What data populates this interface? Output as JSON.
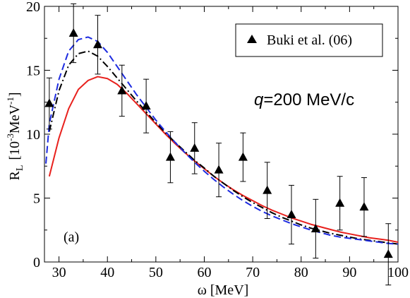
{
  "chart_data": {
    "type": "line",
    "title": "",
    "xlabel": "ω [MeV]",
    "ylabel": {
      "main": "R",
      "subscript": "L",
      "unit_prefix": "[10",
      "exponent1": "-3",
      "unit_middle": "MeV",
      "exponent2": "-1",
      "unit_suffix": "]"
    },
    "xlim": [
      27,
      100
    ],
    "ylim": [
      0,
      20
    ],
    "x_ticks": [
      30,
      40,
      50,
      60,
      70,
      80,
      90,
      100
    ],
    "y_ticks": [
      0,
      5,
      10,
      15,
      20
    ],
    "x_tick_labels": [
      "30",
      "40",
      "50",
      "60",
      "70",
      "80",
      "90",
      "100"
    ],
    "y_tick_labels": [
      "0",
      "5",
      "10",
      "15",
      "20"
    ],
    "grid": false,
    "legend_position": "top-right",
    "legend": {
      "marker": "triangle",
      "label": "Buki et al. (06)"
    },
    "annotation": {
      "var": "q",
      "text": "=200 MeV/c"
    },
    "panel_label": "(a)",
    "series": [
      {
        "style": "solid",
        "color": "#e8211d",
        "x": [
          28,
          30,
          32,
          34,
          36,
          38,
          40,
          42,
          44,
          46,
          48,
          50,
          52,
          54,
          56,
          58,
          60,
          62,
          64,
          66,
          68,
          70,
          72,
          74,
          76,
          78,
          80,
          82,
          84,
          86,
          88,
          90,
          92,
          94,
          96,
          98,
          100
        ],
        "y": [
          6.7,
          9.7,
          12.0,
          13.5,
          14.2,
          14.5,
          14.35,
          13.9,
          13.2,
          12.4,
          11.6,
          10.8,
          10.0,
          9.25,
          8.55,
          7.9,
          7.3,
          6.7,
          6.15,
          5.65,
          5.2,
          4.8,
          4.4,
          4.05,
          3.75,
          3.45,
          3.2,
          2.95,
          2.75,
          2.55,
          2.35,
          2.2,
          2.05,
          1.9,
          1.8,
          1.7,
          1.55
        ]
      },
      {
        "style": "dashdot",
        "color": "#000000",
        "x": [
          28,
          30,
          32,
          34,
          36,
          38,
          40,
          42,
          44,
          46,
          48,
          50,
          52,
          54,
          56,
          58,
          60,
          62,
          64,
          66,
          68,
          70,
          72,
          74,
          76,
          78,
          80,
          82,
          84,
          86,
          88,
          90,
          92,
          94,
          96,
          98,
          100
        ],
        "y": [
          10.2,
          13.4,
          15.4,
          16.3,
          16.5,
          16.1,
          15.3,
          14.4,
          13.5,
          12.6,
          11.75,
          10.9,
          10.1,
          9.35,
          8.65,
          7.95,
          7.35,
          6.7,
          6.15,
          5.6,
          5.1,
          4.65,
          4.25,
          3.85,
          3.5,
          3.2,
          2.9,
          2.65,
          2.45,
          2.25,
          2.1,
          1.95,
          1.8,
          1.7,
          1.6,
          1.5,
          1.4
        ]
      },
      {
        "style": "dashed",
        "color": "#1d2be0",
        "x": [
          27.3,
          28,
          30,
          32,
          34,
          36,
          38,
          40,
          42,
          44,
          46,
          48,
          50,
          52,
          54,
          56,
          58,
          60,
          62,
          64,
          66,
          68,
          70,
          72,
          74,
          76,
          78,
          80,
          82,
          84,
          86,
          88,
          90,
          92,
          94,
          96,
          98,
          100
        ],
        "y": [
          7.7,
          10.8,
          14.3,
          16.5,
          17.4,
          17.6,
          17.25,
          16.4,
          15.3,
          14.2,
          13.1,
          12.1,
          11.1,
          10.2,
          9.35,
          8.55,
          7.8,
          7.1,
          6.45,
          5.85,
          5.3,
          4.8,
          4.35,
          3.95,
          3.6,
          3.3,
          3.0,
          2.75,
          2.5,
          2.3,
          2.1,
          1.95,
          1.85,
          1.75,
          1.65,
          1.55,
          1.45,
          1.4
        ]
      },
      {
        "name": "Buki et al. (06)",
        "style": "markers",
        "color": "#000000",
        "x": [
          28,
          33,
          38,
          43,
          48,
          53,
          58,
          63,
          68,
          73,
          78,
          83,
          88,
          93,
          98
        ],
        "y": [
          12.4,
          17.9,
          17.0,
          13.4,
          12.2,
          8.2,
          8.9,
          7.2,
          8.2,
          5.6,
          3.7,
          2.6,
          4.6,
          4.3,
          0.6
        ],
        "yerr": [
          2.0,
          2.3,
          2.3,
          2.0,
          2.1,
          2.0,
          2.0,
          2.1,
          1.9,
          2.2,
          2.3,
          2.3,
          2.1,
          2.3,
          2.4
        ]
      }
    ]
  }
}
